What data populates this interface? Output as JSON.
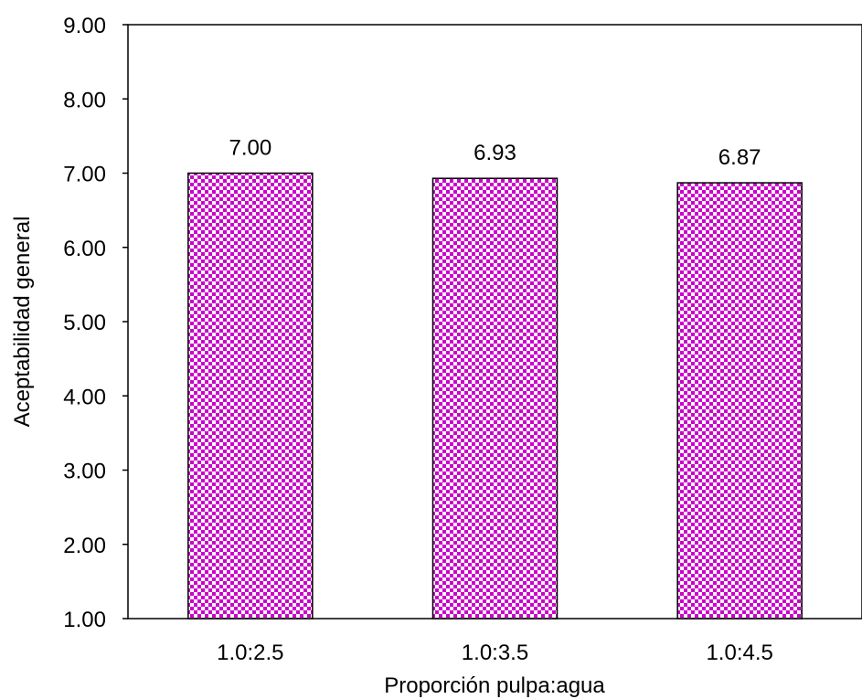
{
  "chart_data": {
    "type": "bar",
    "categories": [
      "1.0:2.5",
      "1.0:3.5",
      "1.0:4.5"
    ],
    "values": [
      7.0,
      6.93,
      6.87
    ],
    "data_labels": [
      "7.00",
      "6.93",
      "6.87"
    ],
    "title": "",
    "xlabel": "Proporción pulpa:agua",
    "ylabel": "Aceptabilidad general",
    "ylim": [
      1.0,
      9.0
    ],
    "yticks": [
      "1.00",
      "2.00",
      "3.00",
      "4.00",
      "5.00",
      "6.00",
      "7.00",
      "8.00",
      "9.00"
    ],
    "grid": false,
    "legend": "none",
    "colors": {
      "bar_fill": "#ffffff",
      "bar_pattern": "#cc00cc",
      "bar_stroke": "#000000",
      "axis": "#000000"
    }
  }
}
